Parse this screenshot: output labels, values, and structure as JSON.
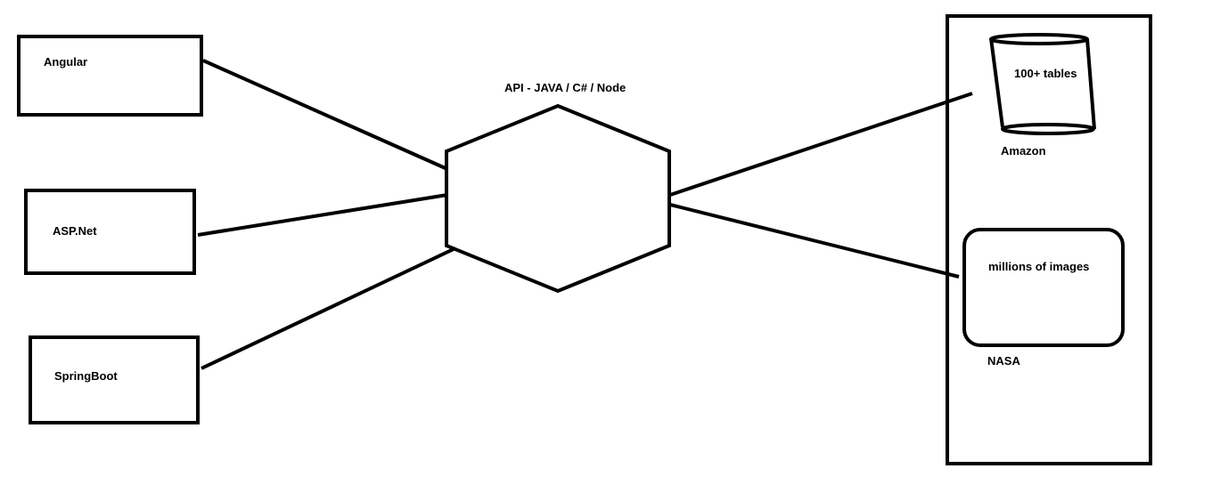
{
  "clients": [
    {
      "label": "Angular"
    },
    {
      "label": "ASP.Net"
    },
    {
      "label": "SpringBoot"
    }
  ],
  "api": {
    "label": "API - JAVA / C# / Node"
  },
  "backends": {
    "database": {
      "content": "100+ tables",
      "caption": "Amazon"
    },
    "image_store": {
      "content": "millions of images",
      "caption": "NASA"
    }
  }
}
